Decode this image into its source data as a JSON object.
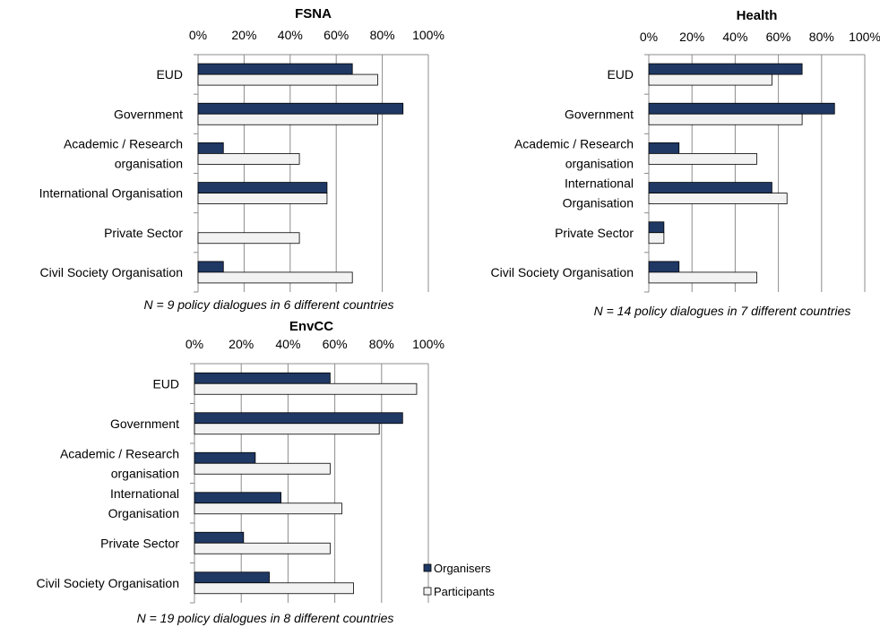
{
  "colors": {
    "organisers": "#1f3864",
    "participants": "#f2f2f2",
    "grid": "#8c8c8c"
  },
  "legend": {
    "organisers": "Organisers",
    "participants": "Participants"
  },
  "chart_data": [
    {
      "type": "bar",
      "orientation": "horizontal",
      "title": "FSNA",
      "xlim": [
        0,
        100
      ],
      "ticks": [
        "0%",
        "20%",
        "40%",
        "60%",
        "80%",
        "100%"
      ],
      "categories": [
        [
          "EUD"
        ],
        [
          "Government"
        ],
        [
          "Academic / Research",
          "organisation"
        ],
        [
          "International Organisation"
        ],
        [
          "Private Sector"
        ],
        [
          "Civil Society Organisation"
        ]
      ],
      "series": [
        {
          "name": "Organisers",
          "values": [
            67,
            89,
            11,
            56,
            0,
            11
          ]
        },
        {
          "name": "Participants",
          "values": [
            78,
            78,
            44,
            56,
            44,
            67
          ]
        }
      ],
      "note": "N = 9 policy dialogues in 6 different countries"
    },
    {
      "type": "bar",
      "orientation": "horizontal",
      "title": "Health",
      "xlim": [
        0,
        100
      ],
      "ticks": [
        "0%",
        "20%",
        "40%",
        "60%",
        "80%",
        "100%"
      ],
      "categories": [
        [
          "EUD"
        ],
        [
          "Government"
        ],
        [
          "Academic / Research",
          "organisation"
        ],
        [
          "International",
          "Organisation"
        ],
        [
          "Private Sector"
        ],
        [
          "Civil Society Organisation"
        ]
      ],
      "series": [
        {
          "name": "Organisers",
          "values": [
            71,
            86,
            14,
            57,
            7,
            14
          ]
        },
        {
          "name": "Participants",
          "values": [
            57,
            71,
            50,
            64,
            7,
            50
          ]
        }
      ],
      "note": "N = 14 policy dialogues in 7 different countries"
    },
    {
      "type": "bar",
      "orientation": "horizontal",
      "title": "EnvCC",
      "xlim": [
        0,
        100
      ],
      "ticks": [
        "0%",
        "20%",
        "40%",
        "60%",
        "80%",
        "100%"
      ],
      "categories": [
        [
          "EUD"
        ],
        [
          "Government"
        ],
        [
          "Academic / Research",
          "organisation"
        ],
        [
          "International",
          "Organisation"
        ],
        [
          "Private Sector"
        ],
        [
          "Civil Society Organisation"
        ]
      ],
      "series": [
        {
          "name": "Organisers",
          "values": [
            58,
            89,
            26,
            37,
            21,
            32
          ]
        },
        {
          "name": "Participants",
          "values": [
            95,
            79,
            58,
            63,
            58,
            68
          ]
        }
      ],
      "note": "N = 19 policy dialogues in 8 different countries"
    }
  ]
}
